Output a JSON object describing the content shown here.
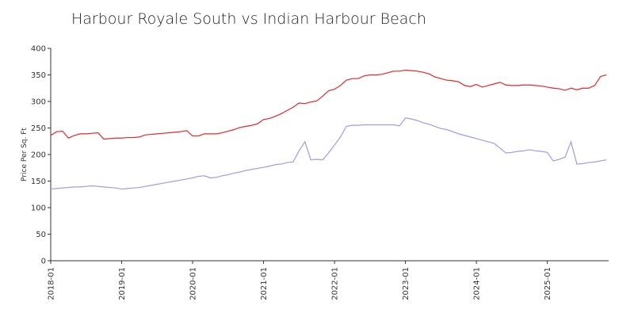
{
  "chart_data": {
    "type": "line",
    "title": "Harbour Royale South vs Indian Harbour Beach",
    "y_label": "Price Per Sq. Ft",
    "x": [
      "2018-01",
      "2018-02",
      "2018-03",
      "2018-04",
      "2018-05",
      "2018-06",
      "2018-07",
      "2018-08",
      "2018-09",
      "2018-10",
      "2018-11",
      "2018-12",
      "2019-01",
      "2019-02",
      "2019-03",
      "2019-04",
      "2019-05",
      "2019-06",
      "2019-07",
      "2019-08",
      "2019-09",
      "2019-10",
      "2019-11",
      "2019-12",
      "2020-01",
      "2020-02",
      "2020-03",
      "2020-04",
      "2020-05",
      "2020-06",
      "2020-07",
      "2020-08",
      "2020-09",
      "2020-10",
      "2020-11",
      "2020-12",
      "2021-01",
      "2021-02",
      "2021-03",
      "2021-04",
      "2021-05",
      "2021-06",
      "2021-07",
      "2021-08",
      "2021-09",
      "2021-10",
      "2021-11",
      "2021-12",
      "2022-01",
      "2022-02",
      "2022-03",
      "2022-04",
      "2022-05",
      "2022-06",
      "2022-07",
      "2022-08",
      "2022-09",
      "2022-10",
      "2022-11",
      "2022-12",
      "2023-01",
      "2023-02",
      "2023-03",
      "2023-04",
      "2023-05",
      "2023-06",
      "2023-07",
      "2023-08",
      "2023-09",
      "2023-10",
      "2023-11",
      "2023-12",
      "2024-01",
      "2024-02",
      "2024-03",
      "2024-04",
      "2024-05",
      "2024-06",
      "2024-07",
      "2024-08",
      "2024-09",
      "2024-10",
      "2024-11",
      "2024-12",
      "2025-01",
      "2025-02",
      "2025-03",
      "2025-04",
      "2025-05",
      "2025-06",
      "2025-07",
      "2025-08",
      "2025-09",
      "2025-10",
      "2025-11"
    ],
    "series": [
      {
        "color": "#e8262b",
        "values": [
          236,
          243,
          244,
          231,
          236,
          239,
          239,
          240,
          241,
          229,
          230,
          231,
          231,
          232,
          232,
          233,
          237,
          238,
          239,
          240,
          241,
          242,
          243,
          245,
          235,
          235,
          239,
          239,
          239,
          241,
          244,
          247,
          251,
          253,
          255,
          258,
          266,
          268,
          272,
          277,
          283,
          289,
          297,
          296,
          299,
          301,
          310,
          320,
          323,
          330,
          340,
          343,
          343,
          348,
          350,
          350,
          351,
          354,
          357,
          357,
          359,
          358,
          357,
          355,
          352,
          346,
          343,
          340,
          339,
          337,
          330,
          328,
          332,
          327,
          330,
          333,
          336,
          331,
          330,
          330,
          331,
          331,
          330,
          329,
          327,
          325,
          324,
          321,
          325,
          322,
          325,
          325,
          330,
          347,
          350
        ]
      },
      {
        "color": "#9c9cf0",
        "values": [
          135,
          136,
          137,
          138,
          139,
          139,
          140,
          141,
          140,
          139,
          138,
          137,
          135,
          136,
          137,
          138,
          140,
          142,
          144,
          146,
          148,
          150,
          152,
          154,
          156,
          159,
          160,
          156,
          157,
          160,
          162,
          165,
          167,
          170,
          172,
          174,
          176,
          178,
          181,
          182,
          185,
          186,
          207,
          224,
          190,
          191,
          190,
          203,
          218,
          233,
          253,
          255,
          255,
          256,
          256,
          256,
          256,
          256,
          256,
          254,
          269,
          267,
          264,
          260,
          257,
          253,
          249,
          247,
          243,
          239,
          236,
          233,
          230,
          227,
          224,
          221,
          212,
          203,
          204,
          206,
          207,
          209,
          207,
          206,
          204,
          188,
          191,
          195,
          224,
          182,
          183,
          185,
          186,
          188,
          190
        ]
      }
    ],
    "ylim": [
      0,
      400
    ],
    "yticks": [
      0,
      50,
      100,
      150,
      200,
      250,
      300,
      350,
      400
    ],
    "grid": false
  }
}
